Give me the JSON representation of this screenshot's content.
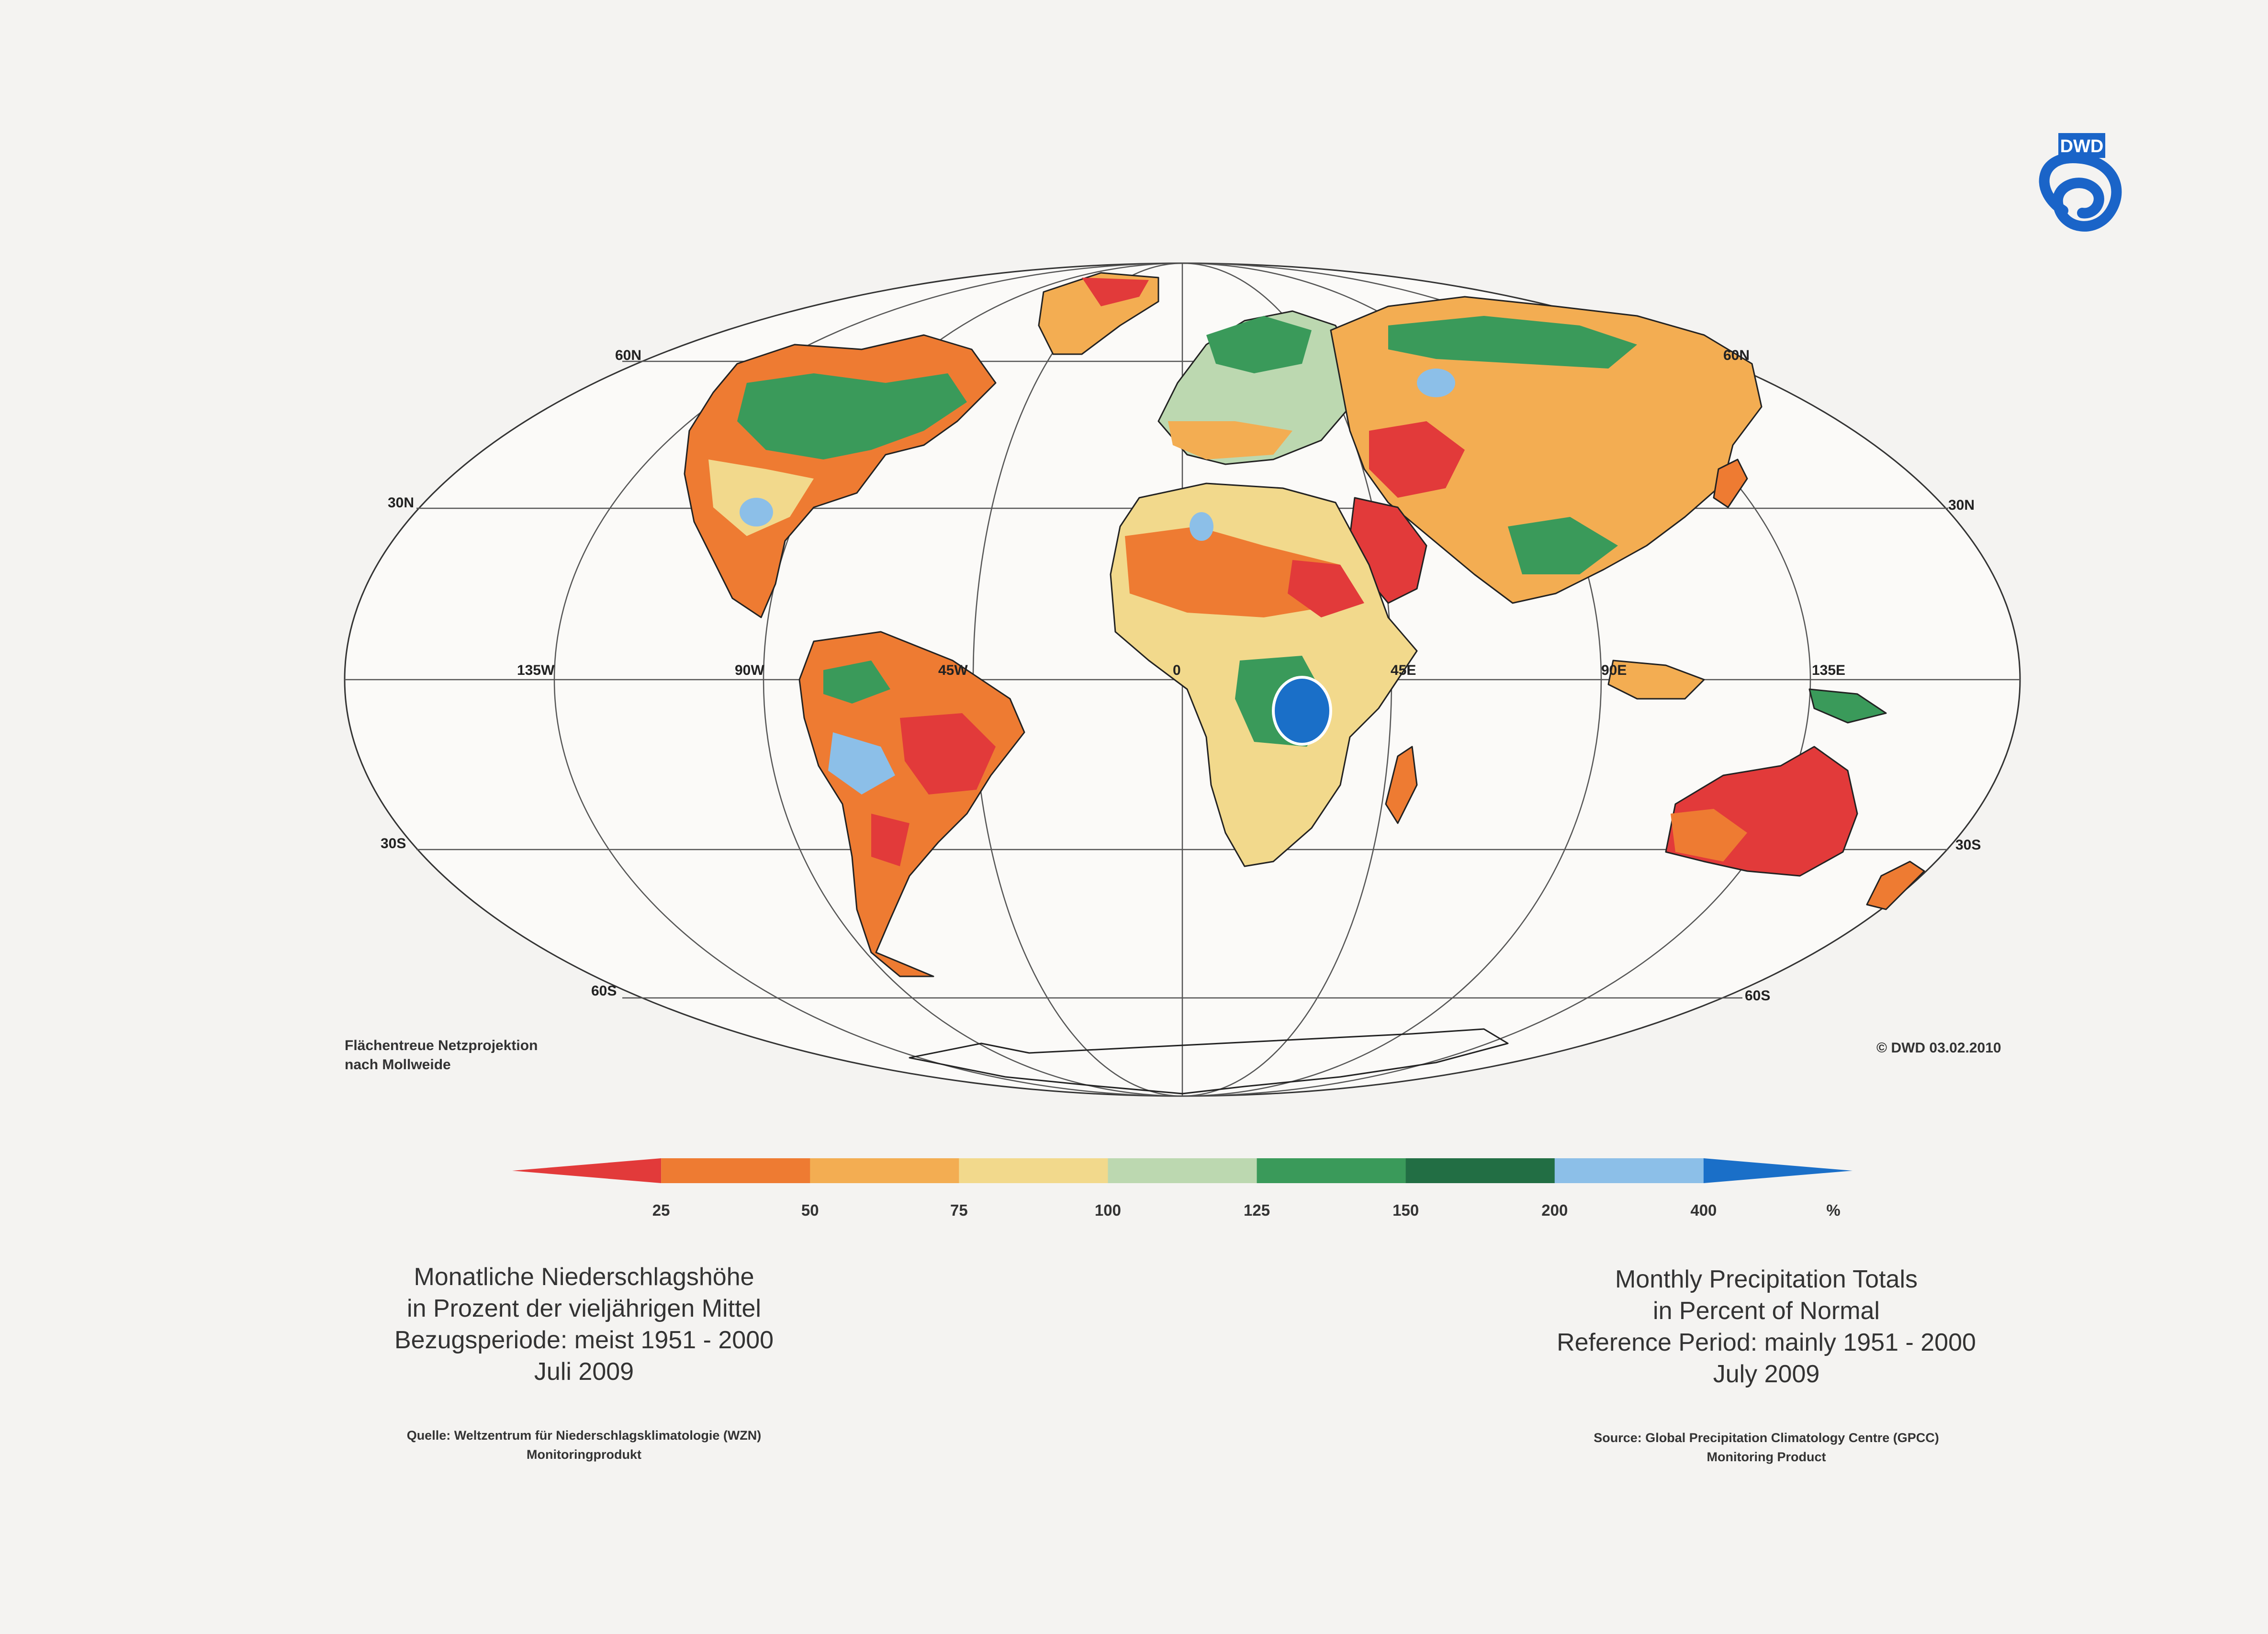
{
  "logo": {
    "text": "DWD",
    "color": "#1a64c8"
  },
  "map": {
    "graticule": {
      "lat_labels_left": [
        "60N",
        "30N",
        "30S",
        "60S"
      ],
      "lat_labels_right": [
        "60N",
        "30N",
        "30S",
        "60S"
      ],
      "lon_labels": [
        "135W",
        "90W",
        "45W",
        "0",
        "45E",
        "90E",
        "135E"
      ]
    },
    "projection_note": [
      "Flächentreue Netzprojektion",
      "nach Mollweide"
    ],
    "copyright": "© DWD 03.02.2010"
  },
  "legend": {
    "ticks": [
      "25",
      "50",
      "75",
      "100",
      "125",
      "150",
      "200",
      "400"
    ],
    "unit": "%",
    "colors": [
      "#e23a3a",
      "#ee7b32",
      "#f3ad52",
      "#f2d98c",
      "#bcd8b0",
      "#3a9a5a",
      "#226e44",
      "#8cbfe8",
      "#1a6fc8"
    ]
  },
  "title_de": {
    "lines": [
      "Monatliche Niederschlagshöhe",
      "in Prozent der vieljährigen Mittel",
      "Bezugsperiode: meist 1951 - 2000",
      "Juli 2009"
    ],
    "source": [
      "Quelle: Weltzentrum für Niederschlagsklimatologie (WZN)",
      "Monitoringprodukt"
    ]
  },
  "title_en": {
    "lines": [
      "Monthly Precipitation Totals",
      "in Percent of Normal",
      "Reference Period: mainly 1951 - 2000",
      "July 2009"
    ],
    "source": [
      "Source: Global Precipitation Climatology Centre (GPCC)",
      "Monitoring Product"
    ]
  }
}
